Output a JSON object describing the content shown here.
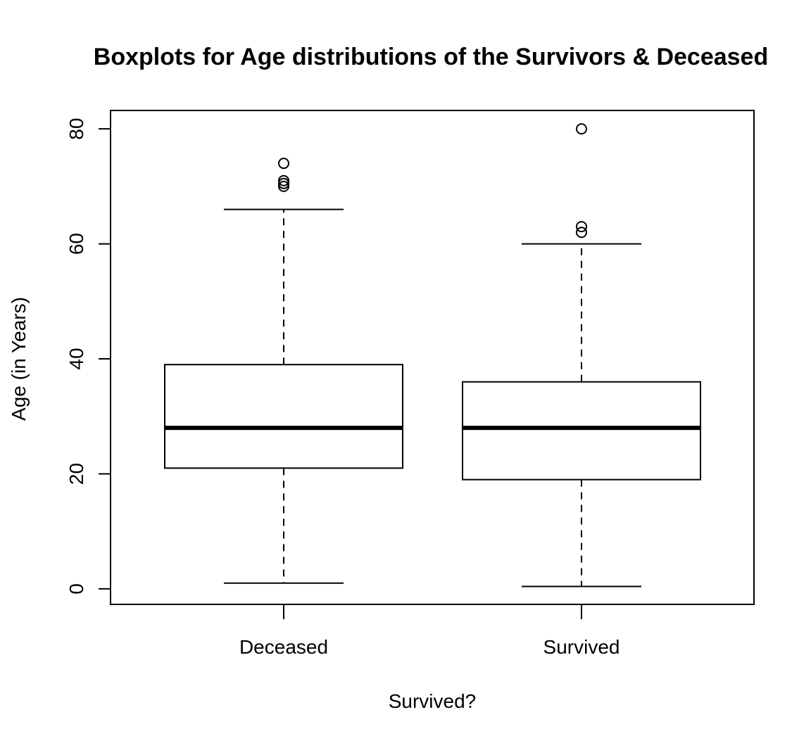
{
  "chart_data": {
    "type": "boxplot",
    "title": "Boxplots for Age distributions of the Survivors & Deceased",
    "xlabel": "Survived?",
    "ylabel": "Age (in Years)",
    "ylim": [
      -2.7,
      83.2
    ],
    "yticks": [
      0,
      20,
      40,
      60,
      80
    ],
    "ytick_labels": [
      "0",
      "20",
      "40",
      "60",
      "80"
    ],
    "grid": false,
    "legend": "none",
    "categories": [
      "Deceased",
      "Survived"
    ],
    "boxes": [
      {
        "category": "Deceased",
        "whisker_low": 1,
        "q1": 21,
        "median": 28,
        "q3": 39,
        "whisker_high": 66,
        "outliers": [
          70,
          70.5,
          71,
          74
        ]
      },
      {
        "category": "Survived",
        "whisker_low": 0.42,
        "q1": 19,
        "median": 28,
        "q3": 36,
        "whisker_high": 60,
        "outliers": [
          62,
          63,
          80
        ]
      }
    ]
  }
}
